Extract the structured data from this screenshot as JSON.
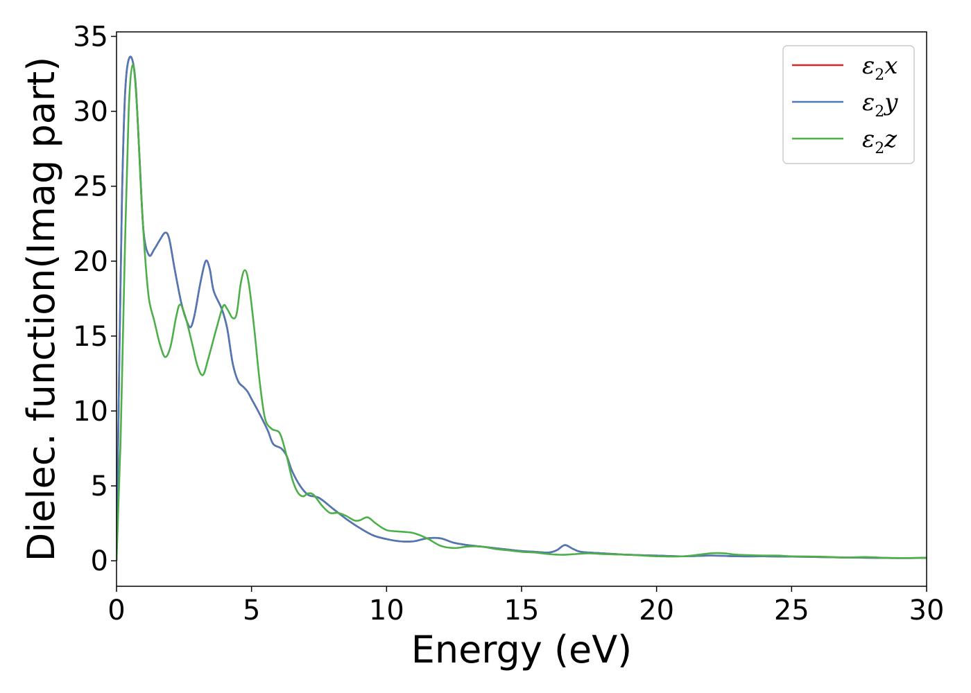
{
  "chart_data": {
    "type": "line",
    "title": "",
    "xlabel": "Energy (eV)",
    "ylabel": "Dielec. function(Imag part)",
    "xlim": [
      0,
      30
    ],
    "ylim": [
      -1.7,
      35.3
    ],
    "xticks": [
      0,
      5,
      10,
      15,
      20,
      25,
      30
    ],
    "yticks": [
      0,
      5,
      10,
      15,
      20,
      25,
      30,
      35
    ],
    "grid": false,
    "legend_position": "top-right",
    "series": [
      {
        "name": "ε2x",
        "name_base": "ε",
        "name_sub": "2",
        "name_rest": "x",
        "color": "#d62728",
        "points": [
          [
            0,
            0
          ],
          [
            0.1,
            13
          ],
          [
            0.2,
            24
          ],
          [
            0.3,
            30.5
          ],
          [
            0.4,
            33
          ],
          [
            0.55,
            33.6
          ],
          [
            0.7,
            32
          ],
          [
            0.85,
            27
          ],
          [
            1.0,
            22
          ],
          [
            1.2,
            20.4
          ],
          [
            1.4,
            20.8
          ],
          [
            1.6,
            21.4
          ],
          [
            1.8,
            21.9
          ],
          [
            1.95,
            21.5
          ],
          [
            2.15,
            19.5
          ],
          [
            2.4,
            17.2
          ],
          [
            2.6,
            16
          ],
          [
            2.75,
            15.6
          ],
          [
            2.9,
            16.5
          ],
          [
            3.1,
            18.5
          ],
          [
            3.3,
            20.0
          ],
          [
            3.45,
            19.5
          ],
          [
            3.6,
            18
          ],
          [
            3.9,
            16.8
          ],
          [
            4.1,
            15.5
          ],
          [
            4.3,
            13.2
          ],
          [
            4.5,
            12
          ],
          [
            4.7,
            11.6
          ],
          [
            4.85,
            11.3
          ],
          [
            5.0,
            10.8
          ],
          [
            5.3,
            9.8
          ],
          [
            5.6,
            8.7
          ],
          [
            5.8,
            7.8
          ],
          [
            6.1,
            7.5
          ],
          [
            6.3,
            7.0
          ],
          [
            6.5,
            6.0
          ],
          [
            6.8,
            5.0
          ],
          [
            7.1,
            4.4
          ],
          [
            7.5,
            4.2
          ],
          [
            8.0,
            3.5
          ],
          [
            8.5,
            2.8
          ],
          [
            9.0,
            2.2
          ],
          [
            9.5,
            1.7
          ],
          [
            10.0,
            1.45
          ],
          [
            10.5,
            1.3
          ],
          [
            11.0,
            1.3
          ],
          [
            11.5,
            1.5
          ],
          [
            12.0,
            1.5
          ],
          [
            12.5,
            1.2
          ],
          [
            13.0,
            1.05
          ],
          [
            13.5,
            0.95
          ],
          [
            14.0,
            0.85
          ],
          [
            14.5,
            0.75
          ],
          [
            15.0,
            0.65
          ],
          [
            15.5,
            0.6
          ],
          [
            16.0,
            0.55
          ],
          [
            16.3,
            0.7
          ],
          [
            16.6,
            1.05
          ],
          [
            16.9,
            0.8
          ],
          [
            17.2,
            0.6
          ],
          [
            18.0,
            0.5
          ],
          [
            19.0,
            0.4
          ],
          [
            20.0,
            0.35
          ],
          [
            21.0,
            0.3
          ],
          [
            22.0,
            0.35
          ],
          [
            23.0,
            0.3
          ],
          [
            24.0,
            0.3
          ],
          [
            25.0,
            0.28
          ],
          [
            26.0,
            0.25
          ],
          [
            27.0,
            0.22
          ],
          [
            28.0,
            0.2
          ],
          [
            29.0,
            0.18
          ],
          [
            30.0,
            0.2
          ]
        ]
      },
      {
        "name": "ε2y",
        "name_base": "ε",
        "name_sub": "2",
        "name_rest": "y",
        "color": "#4e79b6",
        "points": [
          [
            0,
            0
          ],
          [
            0.1,
            13
          ],
          [
            0.2,
            24
          ],
          [
            0.3,
            30.5
          ],
          [
            0.4,
            33
          ],
          [
            0.55,
            33.6
          ],
          [
            0.7,
            32
          ],
          [
            0.85,
            27
          ],
          [
            1.0,
            22
          ],
          [
            1.2,
            20.4
          ],
          [
            1.4,
            20.8
          ],
          [
            1.6,
            21.4
          ],
          [
            1.8,
            21.9
          ],
          [
            1.95,
            21.5
          ],
          [
            2.15,
            19.5
          ],
          [
            2.4,
            17.2
          ],
          [
            2.6,
            16
          ],
          [
            2.75,
            15.6
          ],
          [
            2.9,
            16.5
          ],
          [
            3.1,
            18.5
          ],
          [
            3.3,
            20.0
          ],
          [
            3.45,
            19.5
          ],
          [
            3.6,
            18
          ],
          [
            3.9,
            16.8
          ],
          [
            4.1,
            15.5
          ],
          [
            4.3,
            13.2
          ],
          [
            4.5,
            12
          ],
          [
            4.7,
            11.6
          ],
          [
            4.85,
            11.3
          ],
          [
            5.0,
            10.8
          ],
          [
            5.3,
            9.8
          ],
          [
            5.6,
            8.7
          ],
          [
            5.8,
            7.8
          ],
          [
            6.1,
            7.5
          ],
          [
            6.3,
            7.0
          ],
          [
            6.5,
            6.0
          ],
          [
            6.8,
            5.0
          ],
          [
            7.1,
            4.4
          ],
          [
            7.5,
            4.2
          ],
          [
            8.0,
            3.5
          ],
          [
            8.5,
            2.8
          ],
          [
            9.0,
            2.2
          ],
          [
            9.5,
            1.7
          ],
          [
            10.0,
            1.45
          ],
          [
            10.5,
            1.3
          ],
          [
            11.0,
            1.3
          ],
          [
            11.5,
            1.5
          ],
          [
            12.0,
            1.5
          ],
          [
            12.5,
            1.2
          ],
          [
            13.0,
            1.05
          ],
          [
            13.5,
            0.95
          ],
          [
            14.0,
            0.85
          ],
          [
            14.5,
            0.75
          ],
          [
            15.0,
            0.65
          ],
          [
            15.5,
            0.6
          ],
          [
            16.0,
            0.55
          ],
          [
            16.3,
            0.7
          ],
          [
            16.6,
            1.05
          ],
          [
            16.9,
            0.8
          ],
          [
            17.2,
            0.6
          ],
          [
            18.0,
            0.5
          ],
          [
            19.0,
            0.4
          ],
          [
            20.0,
            0.35
          ],
          [
            21.0,
            0.3
          ],
          [
            22.0,
            0.35
          ],
          [
            23.0,
            0.3
          ],
          [
            24.0,
            0.3
          ],
          [
            25.0,
            0.28
          ],
          [
            26.0,
            0.25
          ],
          [
            27.0,
            0.22
          ],
          [
            28.0,
            0.2
          ],
          [
            29.0,
            0.18
          ],
          [
            30.0,
            0.2
          ]
        ]
      },
      {
        "name": "ε2z",
        "name_base": "ε",
        "name_sub": "2",
        "name_rest": "z",
        "color": "#4daf4a",
        "points": [
          [
            0,
            0
          ],
          [
            0.15,
            8
          ],
          [
            0.3,
            20
          ],
          [
            0.45,
            30
          ],
          [
            0.6,
            33.1
          ],
          [
            0.75,
            30.5
          ],
          [
            0.9,
            25
          ],
          [
            1.05,
            20.5
          ],
          [
            1.2,
            17.5
          ],
          [
            1.4,
            16
          ],
          [
            1.6,
            14.5
          ],
          [
            1.8,
            13.6
          ],
          [
            2.0,
            14.3
          ],
          [
            2.2,
            16.2
          ],
          [
            2.35,
            17.1
          ],
          [
            2.55,
            16.3
          ],
          [
            2.8,
            14.5
          ],
          [
            3.0,
            13.0
          ],
          [
            3.2,
            12.4
          ],
          [
            3.4,
            13.5
          ],
          [
            3.7,
            15.5
          ],
          [
            3.95,
            17.0
          ],
          [
            4.1,
            16.8
          ],
          [
            4.3,
            16.2
          ],
          [
            4.45,
            16.5
          ],
          [
            4.6,
            18.5
          ],
          [
            4.75,
            19.4
          ],
          [
            4.9,
            18.5
          ],
          [
            5.1,
            15.5
          ],
          [
            5.3,
            12
          ],
          [
            5.5,
            9.5
          ],
          [
            5.75,
            8.8
          ],
          [
            6.05,
            8.5
          ],
          [
            6.3,
            7.0
          ],
          [
            6.5,
            5.5
          ],
          [
            6.7,
            4.6
          ],
          [
            6.9,
            4.3
          ],
          [
            7.1,
            4.5
          ],
          [
            7.3,
            4.4
          ],
          [
            7.6,
            3.7
          ],
          [
            7.9,
            3.2
          ],
          [
            8.2,
            3.2
          ],
          [
            8.5,
            3.0
          ],
          [
            8.8,
            2.7
          ],
          [
            9.0,
            2.7
          ],
          [
            9.3,
            2.9
          ],
          [
            9.6,
            2.5
          ],
          [
            10.0,
            2.05
          ],
          [
            10.5,
            1.95
          ],
          [
            11.0,
            1.85
          ],
          [
            11.5,
            1.5
          ],
          [
            12.0,
            1.0
          ],
          [
            12.5,
            0.85
          ],
          [
            13.0,
            0.95
          ],
          [
            13.5,
            0.95
          ],
          [
            14.0,
            0.8
          ],
          [
            14.5,
            0.7
          ],
          [
            15.0,
            0.6
          ],
          [
            15.5,
            0.55
          ],
          [
            16.0,
            0.45
          ],
          [
            16.5,
            0.4
          ],
          [
            17.0,
            0.45
          ],
          [
            17.5,
            0.5
          ],
          [
            18.0,
            0.45
          ],
          [
            19.0,
            0.4
          ],
          [
            20.0,
            0.3
          ],
          [
            21.0,
            0.3
          ],
          [
            22.0,
            0.5
          ],
          [
            22.5,
            0.5
          ],
          [
            23.0,
            0.4
          ],
          [
            24.0,
            0.35
          ],
          [
            24.5,
            0.35
          ],
          [
            25.0,
            0.3
          ],
          [
            26.0,
            0.28
          ],
          [
            27.0,
            0.22
          ],
          [
            27.7,
            0.25
          ],
          [
            28.5,
            0.2
          ],
          [
            29.0,
            0.18
          ],
          [
            30.0,
            0.2
          ]
        ]
      }
    ]
  }
}
